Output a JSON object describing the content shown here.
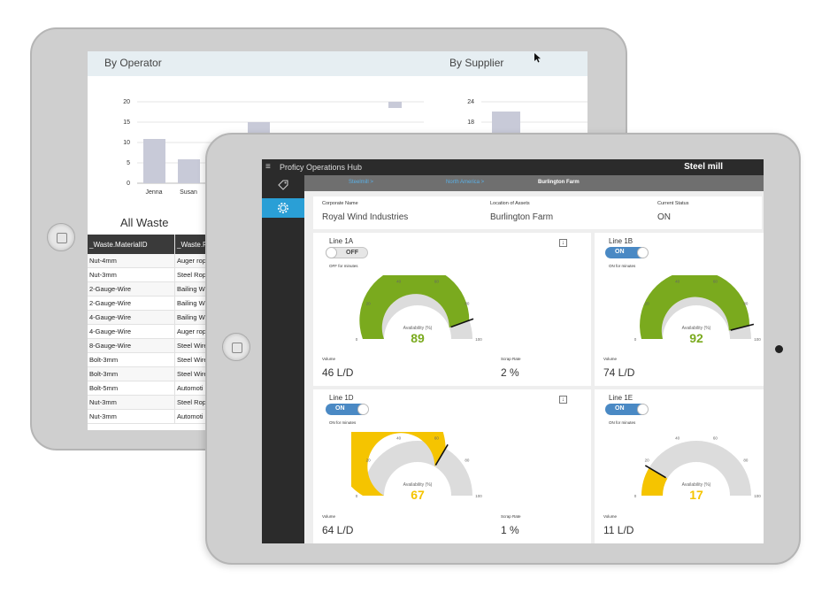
{
  "back": {
    "header_left": "By Operator",
    "header_right": "By Supplier",
    "operator_chart": {
      "yticks": [
        "20",
        "15",
        "10",
        "5",
        "0"
      ],
      "categories": [
        "Jenna",
        "Susan"
      ]
    },
    "supplier_chart": {
      "yticks": [
        "24",
        "18"
      ]
    },
    "all_waste_title": "All Waste",
    "table": {
      "headers": [
        "_Waste.MaterialID",
        "_Waste.F"
      ],
      "rows": [
        [
          "Nut-4mm",
          "Auger rop"
        ],
        [
          "Nut-3mm",
          "Steel Rope"
        ],
        [
          "2-Gauge-Wire",
          "Bailing Wi"
        ],
        [
          "2-Gauge-Wire",
          "Bailing Wi"
        ],
        [
          "4-Gauge-Wire",
          "Bailing Wi"
        ],
        [
          "4-Gauge-Wire",
          "Auger rop"
        ],
        [
          "8-Gauge-Wire",
          "Steel Wire"
        ],
        [
          "Bolt-3mm",
          "Steel Wire"
        ],
        [
          "Bolt-3mm",
          "Steel Wire"
        ],
        [
          "Bolt-5mm",
          "Automoti"
        ],
        [
          "Nut-3mm",
          "Steel Rope"
        ],
        [
          "Nut-3mm",
          "Automoti"
        ]
      ]
    }
  },
  "front": {
    "app_title": "Proficy Operations Hub",
    "plant_name": "Steel mill",
    "breadcrumb": [
      "Steelmill >",
      "North America >",
      "Burlington Farm"
    ],
    "info": {
      "corp_label": "Corporate Name",
      "corp_value": "Royal Wind Industries",
      "loc_label": "Location of Assets",
      "loc_value": "Burlington Farm",
      "status_label": "Current Status",
      "status_value": "ON"
    },
    "gauge_label": "Availability (%)",
    "gauge_ticks": [
      "0",
      "20",
      "40",
      "60",
      "80",
      "100"
    ],
    "volume_label": "Volume",
    "scrap_label": "Scrap Rate",
    "download_icon": "↓",
    "lines": [
      {
        "name": "Line 1A",
        "state": "OFF",
        "note": "OFF for minutes",
        "availability": "89",
        "volume": "46 L/D",
        "scrap": "2 %"
      },
      {
        "name": "Line 1B",
        "state": "ON",
        "note": "ON for minutes",
        "availability": "92",
        "volume": "74 L/D"
      },
      {
        "name": "Line 1D",
        "state": "ON",
        "note": "ON for minutes",
        "availability": "67",
        "volume": "64 L/D",
        "scrap": "1 %"
      },
      {
        "name": "Line 1E",
        "state": "ON",
        "note": "ON for minutes",
        "availability": "17",
        "volume": "11 L/D"
      }
    ],
    "colors": {
      "green": "#7aaa1e",
      "yellow": "#f5c400",
      "track": "#dcdcdc",
      "toggle_on": "#4a89c4",
      "sidebar_active": "#2a9fd6"
    }
  }
}
